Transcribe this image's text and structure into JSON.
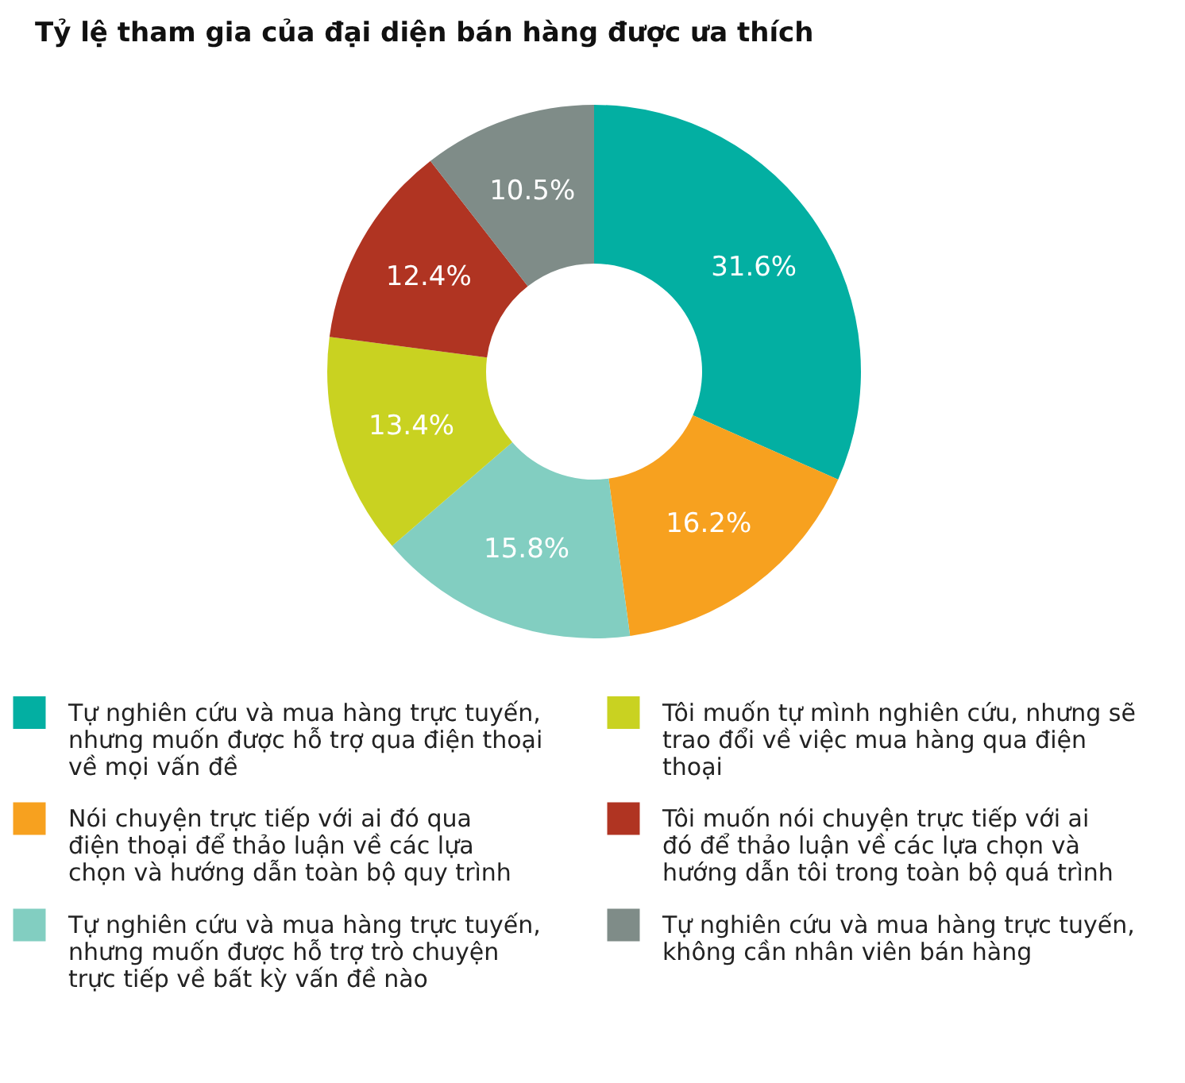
{
  "chart_data": {
    "type": "donut",
    "title": "Tỷ lệ tham gia của đại diện bán hàng được ưa thích",
    "categories": [
      "Tự nghiên cứu và mua hàng trực tuyến, nhưng muốn được hỗ trợ qua điện thoại về mọi vấn đề",
      "Nói chuyện trực tiếp với ai đó qua điện thoại để thảo luận về các lựa chọn và hướng dẫn toàn bộ quy trình",
      "Tự nghiên cứu và mua hàng trực tuyến, nhưng muốn được hỗ trợ trò chuyện trực tiếp về bất kỳ vấn đề nào",
      "Tôi muốn tự mình nghiên cứu, nhưng sẽ trao đổi về việc mua hàng qua điện thoại",
      "Tôi muốn nói chuyện trực tiếp với ai đó để thảo luận về các lựa chọn và hướng dẫn tôi trong toàn bộ quá trình",
      "Tự nghiên cứu và mua hàng trực tuyến, không cần nhân viên bán hàng"
    ],
    "values": [
      31.6,
      16.2,
      15.8,
      13.4,
      12.4,
      10.5
    ],
    "colors": [
      "#03afa2",
      "#f7a11f",
      "#82cec1",
      "#c9d221",
      "#b03422",
      "#7f8c88"
    ],
    "value_labels": [
      "31.6%",
      "16.2%",
      "15.8%",
      "13.4%",
      "12.4%",
      "10.5%"
    ],
    "legend": "bottom"
  }
}
